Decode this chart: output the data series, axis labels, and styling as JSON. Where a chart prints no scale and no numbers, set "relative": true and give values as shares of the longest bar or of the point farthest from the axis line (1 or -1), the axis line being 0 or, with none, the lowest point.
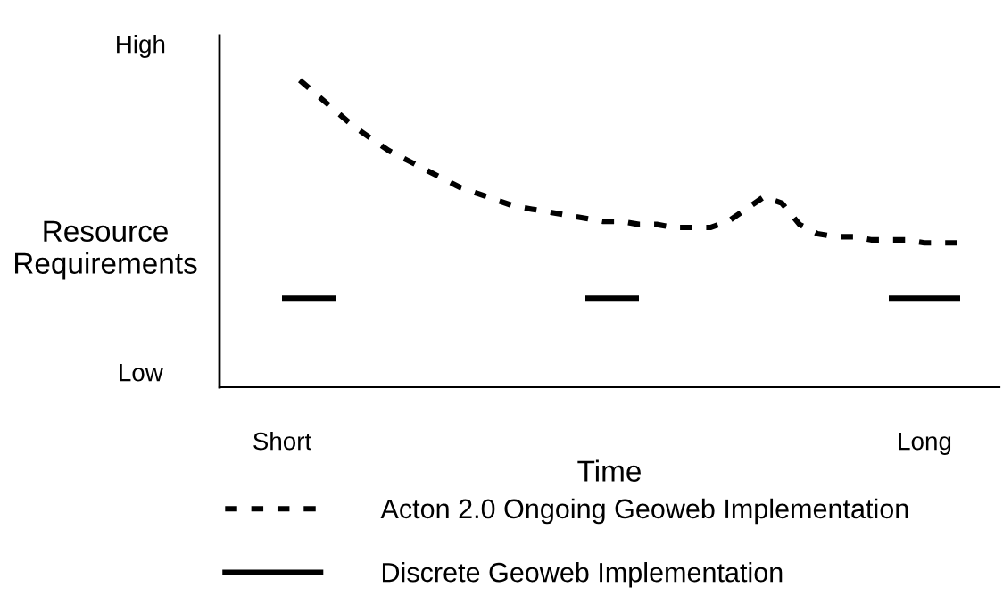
{
  "chart_data": {
    "type": "line",
    "relative": true,
    "xlabel": "Time",
    "ylabel": "Resource\nRequirements",
    "annotations": [
      "High",
      "Low"
    ],
    "categories": [
      null,
      null,
      null,
      "Short",
      null,
      null,
      null,
      null,
      null,
      null,
      null,
      null,
      null,
      null,
      null,
      null,
      null,
      null,
      null,
      null,
      null,
      null,
      null,
      null,
      null,
      null,
      null,
      null,
      null,
      null,
      null,
      null,
      null,
      null,
      null,
      null,
      null,
      null,
      null,
      "Long",
      null,
      null,
      null
    ],
    "series": [
      {
        "name": "Acton 2.0 Ongoing Geoweb Implementation",
        "color": "#000000",
        "line_style": "dashed",
        "values": [
          null,
          null,
          null,
          null,
          1.0,
          0.95,
          0.9,
          0.85,
          0.81,
          0.77,
          0.74,
          0.71,
          0.68,
          0.65,
          0.63,
          0.61,
          0.59,
          0.58,
          0.57,
          0.56,
          0.55,
          0.54,
          0.54,
          0.53,
          0.53,
          0.52,
          0.52,
          0.52,
          0.54,
          0.58,
          0.62,
          0.6,
          0.53,
          0.5,
          0.49,
          0.49,
          0.48,
          0.48,
          0.48,
          0.47,
          0.47,
          0.47,
          null
        ]
      },
      {
        "name": "Discrete Geoweb Implementation",
        "color": "#000000",
        "line_style": "solid",
        "values": [
          null,
          null,
          null,
          0.29,
          0.29,
          0.29,
          0.29,
          null,
          null,
          null,
          null,
          null,
          null,
          null,
          null,
          null,
          null,
          null,
          null,
          null,
          0.29,
          0.29,
          0.29,
          0.29,
          null,
          null,
          null,
          null,
          null,
          null,
          null,
          null,
          null,
          null,
          null,
          null,
          null,
          0.29,
          0.29,
          0.29,
          0.29,
          0.29,
          null
        ]
      }
    ],
    "legend": "bottom",
    "grid": false,
    "marker": "none"
  }
}
